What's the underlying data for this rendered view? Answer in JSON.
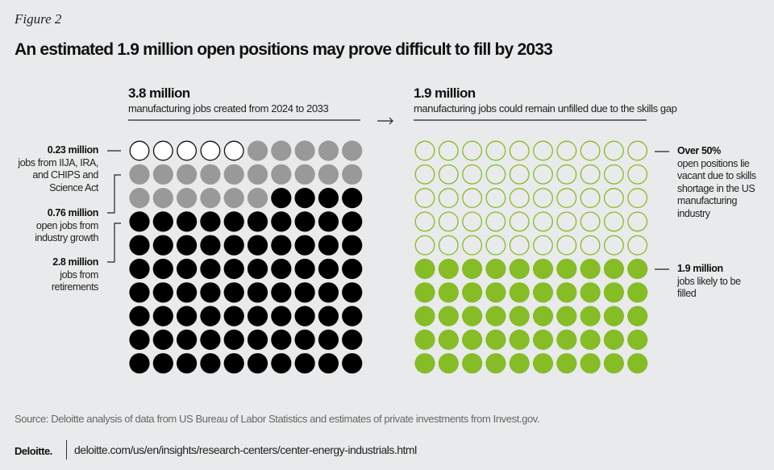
{
  "figure_label": "Figure 2",
  "title": "An estimated 1.9 million open positions may prove difficult to fill by 2033",
  "chart_data": [
    {
      "type": "waffle",
      "header": "3.8 million",
      "subheader": "manufacturing jobs created from 2024 to 2033",
      "grid": [
        10,
        10
      ],
      "segments": [
        {
          "value": "0.23 million",
          "description": "jobs from IIJA, IRA, and CHIPS and Science Act",
          "count": 5,
          "fill": "#ffffff",
          "stroke": "#111111"
        },
        {
          "value": "0.76 million",
          "description": "open jobs from industry growth",
          "count": 21,
          "fill": "#999999",
          "stroke": "none"
        },
        {
          "value": "2.8 million",
          "description": "jobs from retirements",
          "count": 74,
          "fill": "#000000",
          "stroke": "none"
        }
      ]
    },
    {
      "type": "waffle",
      "header": "1.9 million",
      "subheader": "manufacturing jobs could remain unfilled due to the skills gap",
      "grid": [
        10,
        10
      ],
      "segments": [
        {
          "value": "Over 50%",
          "description": "open positions lie vacant due to skills shortage in the US manufacturing industry",
          "count": 50,
          "fill": "none",
          "stroke": "#86bc25"
        },
        {
          "value": "1.9 million",
          "description": "jobs likely to be filled",
          "count": 50,
          "fill": "#86bc25",
          "stroke": "none"
        }
      ]
    }
  ],
  "arrow": "→",
  "source": "Source: Deloitte analysis of data from US Bureau of Labor Statistics and estimates of private investments from Invest.gov.",
  "footer": {
    "logo": "Deloitte.",
    "url": "deloitte.com/us/en/insights/research-centers/center-energy-industrials.html"
  }
}
